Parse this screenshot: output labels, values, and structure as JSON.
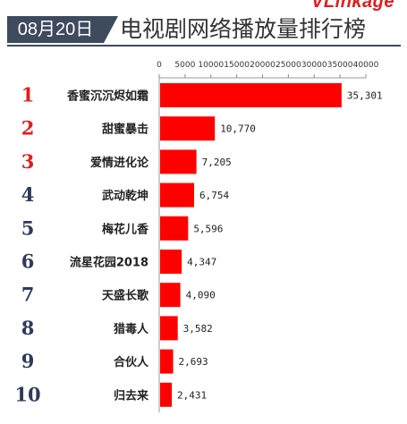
{
  "header": {
    "brand": "VLinkage",
    "date": "08月20日",
    "title": "电视剧网络播放量排行榜"
  },
  "colors": {
    "bar": "#ff0000",
    "rank_top": "#e11d1d",
    "rank_rest": "#2f3a5c",
    "badge": "#3e4a5e"
  },
  "chart_data": {
    "type": "bar",
    "orientation": "horizontal",
    "title": "电视剧网络播放量排行榜",
    "xlim": [
      0,
      40000
    ],
    "xticks": [
      0,
      5000,
      10000,
      15000,
      20000,
      25000,
      30000,
      35000,
      40000
    ],
    "grid": false,
    "ranks": [
      "1",
      "2",
      "3",
      "4",
      "5",
      "6",
      "7",
      "8",
      "9",
      "10"
    ],
    "categories": [
      "香蜜沉沉烬如霜",
      "甜蜜暴击",
      "爱情进化论",
      "武动乾坤",
      "梅花儿香",
      "流星花园2018",
      "天盛长歌",
      "猎毒人",
      "合伙人",
      "归去来"
    ],
    "values": [
      35301,
      10770,
      7205,
      6754,
      5596,
      4347,
      4090,
      3582,
      2693,
      2431
    ],
    "value_labels": [
      "35,301",
      "10,770",
      "7,205",
      "6,754",
      "5,596",
      "4,347",
      "4,090",
      "3,582",
      "2,693",
      "2,431"
    ]
  }
}
